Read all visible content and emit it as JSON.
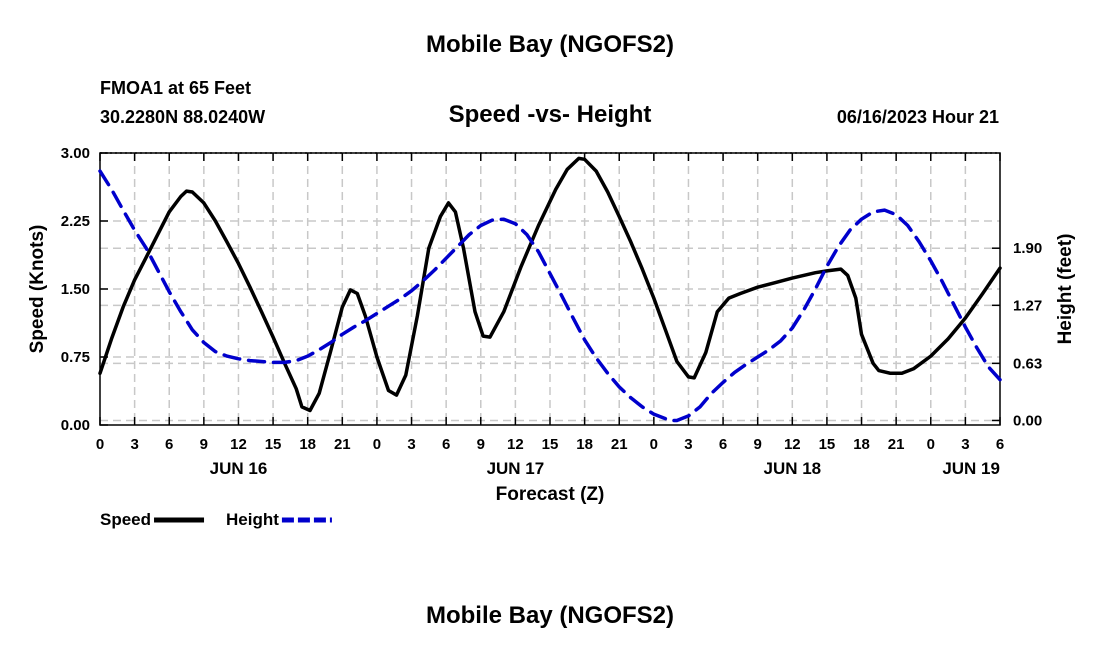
{
  "page": {
    "title": "Mobile Bay (NGOFS2)",
    "station": "FMOA1 at 65 Feet",
    "coords": "30.2280N  88.0240W",
    "subtitle": "Speed -vs- Height",
    "timestamp": "06/16/2023 Hour 21",
    "footer_title": "Mobile Bay (NGOFS2)"
  },
  "colors": {
    "speed": "#000000",
    "height": "#0000cc",
    "grid": "#c8c8c8"
  },
  "chart_data": {
    "type": "line",
    "title": "Speed -vs- Height",
    "xlabel": "Forecast (Z)",
    "ylabel": "Speed (Knots)",
    "y2label": "Height (feet)",
    "x_unit": "hours from Jun 16 00Z",
    "xlim": [
      0,
      78
    ],
    "ylim": [
      0,
      3.0
    ],
    "y2lim": [
      -0.05,
      2.95
    ],
    "x_ticks": [
      0,
      3,
      6,
      9,
      12,
      15,
      18,
      21,
      24,
      27,
      30,
      33,
      36,
      39,
      42,
      45,
      48,
      51,
      54,
      57,
      60,
      63,
      66,
      69,
      72,
      75,
      78
    ],
    "x_tick_labels": [
      "0",
      "3",
      "6",
      "9",
      "12",
      "15",
      "18",
      "21",
      "0",
      "3",
      "6",
      "9",
      "12",
      "15",
      "18",
      "21",
      "0",
      "3",
      "6",
      "9",
      "12",
      "15",
      "18",
      "21",
      "0",
      "3",
      "6"
    ],
    "day_labels": [
      {
        "x": 12,
        "label": "JUN 16"
      },
      {
        "x": 36,
        "label": "JUN 17"
      },
      {
        "x": 60,
        "label": "JUN 18"
      },
      {
        "x": 75.5,
        "label": "JUN 19"
      }
    ],
    "y_ticks": [
      0.0,
      0.75,
      1.5,
      2.25,
      3.0
    ],
    "y_tick_labels": [
      "0.00",
      "0.75",
      "1.50",
      "2.25",
      "3.00"
    ],
    "y2_ticks": [
      0.0,
      0.63,
      1.27,
      1.9
    ],
    "y2_tick_labels": [
      "0.00",
      "0.63",
      "1.27",
      "1.90"
    ],
    "grid": true,
    "legend": "bottom-left",
    "series": [
      {
        "name": "Speed",
        "axis": "left",
        "style": "solid",
        "points": [
          [
            0,
            0.57
          ],
          [
            1,
            0.95
          ],
          [
            2,
            1.3
          ],
          [
            3,
            1.6
          ],
          [
            4,
            1.85
          ],
          [
            5,
            2.1
          ],
          [
            6,
            2.35
          ],
          [
            7,
            2.52
          ],
          [
            7.5,
            2.58
          ],
          [
            8,
            2.57
          ],
          [
            9,
            2.45
          ],
          [
            10,
            2.25
          ],
          [
            11,
            2.02
          ],
          [
            12,
            1.78
          ],
          [
            13,
            1.52
          ],
          [
            14,
            1.25
          ],
          [
            15,
            0.97
          ],
          [
            16,
            0.68
          ],
          [
            17,
            0.4
          ],
          [
            17.5,
            0.2
          ],
          [
            18.2,
            0.16
          ],
          [
            19,
            0.35
          ],
          [
            20,
            0.82
          ],
          [
            21,
            1.3
          ],
          [
            21.7,
            1.49
          ],
          [
            22.3,
            1.45
          ],
          [
            23,
            1.2
          ],
          [
            24,
            0.75
          ],
          [
            25,
            0.38
          ],
          [
            25.7,
            0.33
          ],
          [
            26.5,
            0.55
          ],
          [
            27.5,
            1.2
          ],
          [
            28.5,
            1.95
          ],
          [
            29.5,
            2.3
          ],
          [
            30.2,
            2.45
          ],
          [
            30.8,
            2.35
          ],
          [
            31.5,
            1.95
          ],
          [
            32.5,
            1.25
          ],
          [
            33.2,
            0.98
          ],
          [
            33.8,
            0.97
          ],
          [
            35,
            1.25
          ],
          [
            36.5,
            1.75
          ],
          [
            38,
            2.2
          ],
          [
            39.5,
            2.6
          ],
          [
            40.5,
            2.82
          ],
          [
            41.5,
            2.94
          ],
          [
            42,
            2.93
          ],
          [
            43,
            2.8
          ],
          [
            44,
            2.57
          ],
          [
            45,
            2.3
          ],
          [
            46,
            2.02
          ],
          [
            47,
            1.72
          ],
          [
            48,
            1.4
          ],
          [
            49,
            1.05
          ],
          [
            50,
            0.7
          ],
          [
            51,
            0.53
          ],
          [
            51.5,
            0.52
          ],
          [
            52.5,
            0.8
          ],
          [
            53.5,
            1.25
          ],
          [
            54.5,
            1.4
          ],
          [
            55.5,
            1.45
          ],
          [
            57,
            1.52
          ],
          [
            58.5,
            1.57
          ],
          [
            60,
            1.62
          ],
          [
            62,
            1.68
          ],
          [
            63,
            1.7
          ],
          [
            64.2,
            1.72
          ],
          [
            64.8,
            1.65
          ],
          [
            65.5,
            1.4
          ],
          [
            66,
            1.0
          ],
          [
            67,
            0.68
          ],
          [
            67.5,
            0.6
          ],
          [
            68.5,
            0.57
          ],
          [
            69.5,
            0.57
          ],
          [
            70.5,
            0.62
          ],
          [
            72,
            0.76
          ],
          [
            73.5,
            0.95
          ],
          [
            75,
            1.18
          ],
          [
            76.5,
            1.45
          ],
          [
            78,
            1.73
          ]
        ]
      },
      {
        "name": "Height",
        "axis": "right",
        "style": "dashed",
        "points": [
          [
            0,
            2.75
          ],
          [
            1,
            2.55
          ],
          [
            2,
            2.32
          ],
          [
            3,
            2.1
          ],
          [
            4,
            1.9
          ],
          [
            5,
            1.66
          ],
          [
            6,
            1.42
          ],
          [
            7,
            1.2
          ],
          [
            8,
            1.0
          ],
          [
            9,
            0.86
          ],
          [
            10,
            0.76
          ],
          [
            11,
            0.71
          ],
          [
            12,
            0.68
          ],
          [
            13,
            0.66
          ],
          [
            14,
            0.65
          ],
          [
            15,
            0.64
          ],
          [
            16,
            0.64
          ],
          [
            17,
            0.66
          ],
          [
            18,
            0.71
          ],
          [
            19,
            0.78
          ],
          [
            20,
            0.86
          ],
          [
            21,
            0.95
          ],
          [
            22,
            1.03
          ],
          [
            23,
            1.1
          ],
          [
            24,
            1.18
          ],
          [
            25,
            1.26
          ],
          [
            26,
            1.34
          ],
          [
            27,
            1.43
          ],
          [
            28,
            1.54
          ],
          [
            29,
            1.66
          ],
          [
            30,
            1.79
          ],
          [
            31,
            1.92
          ],
          [
            32,
            2.05
          ],
          [
            33,
            2.15
          ],
          [
            34,
            2.21
          ],
          [
            35,
            2.22
          ],
          [
            36,
            2.17
          ],
          [
            37,
            2.05
          ],
          [
            38,
            1.86
          ],
          [
            39,
            1.62
          ],
          [
            40,
            1.38
          ],
          [
            41,
            1.13
          ],
          [
            42,
            0.89
          ],
          [
            43,
            0.69
          ],
          [
            44,
            0.52
          ],
          [
            45,
            0.37
          ],
          [
            46,
            0.25
          ],
          [
            47,
            0.15
          ],
          [
            48,
            0.07
          ],
          [
            49,
            0.02
          ],
          [
            49.5,
            0.0
          ],
          [
            50,
            0.0
          ],
          [
            51,
            0.05
          ],
          [
            52,
            0.15
          ],
          [
            53,
            0.3
          ],
          [
            54,
            0.42
          ],
          [
            55,
            0.53
          ],
          [
            56,
            0.62
          ],
          [
            57,
            0.7
          ],
          [
            58,
            0.78
          ],
          [
            59,
            0.88
          ],
          [
            60,
            1.02
          ],
          [
            61,
            1.22
          ],
          [
            62,
            1.45
          ],
          [
            63,
            1.7
          ],
          [
            64,
            1.92
          ],
          [
            65,
            2.1
          ],
          [
            66,
            2.22
          ],
          [
            67,
            2.3
          ],
          [
            68,
            2.32
          ],
          [
            69,
            2.27
          ],
          [
            70,
            2.15
          ],
          [
            71,
            1.97
          ],
          [
            72,
            1.76
          ],
          [
            73,
            1.53
          ],
          [
            74,
            1.28
          ],
          [
            75,
            1.03
          ],
          [
            76,
            0.8
          ],
          [
            77,
            0.59
          ],
          [
            78,
            0.45
          ]
        ]
      }
    ]
  }
}
